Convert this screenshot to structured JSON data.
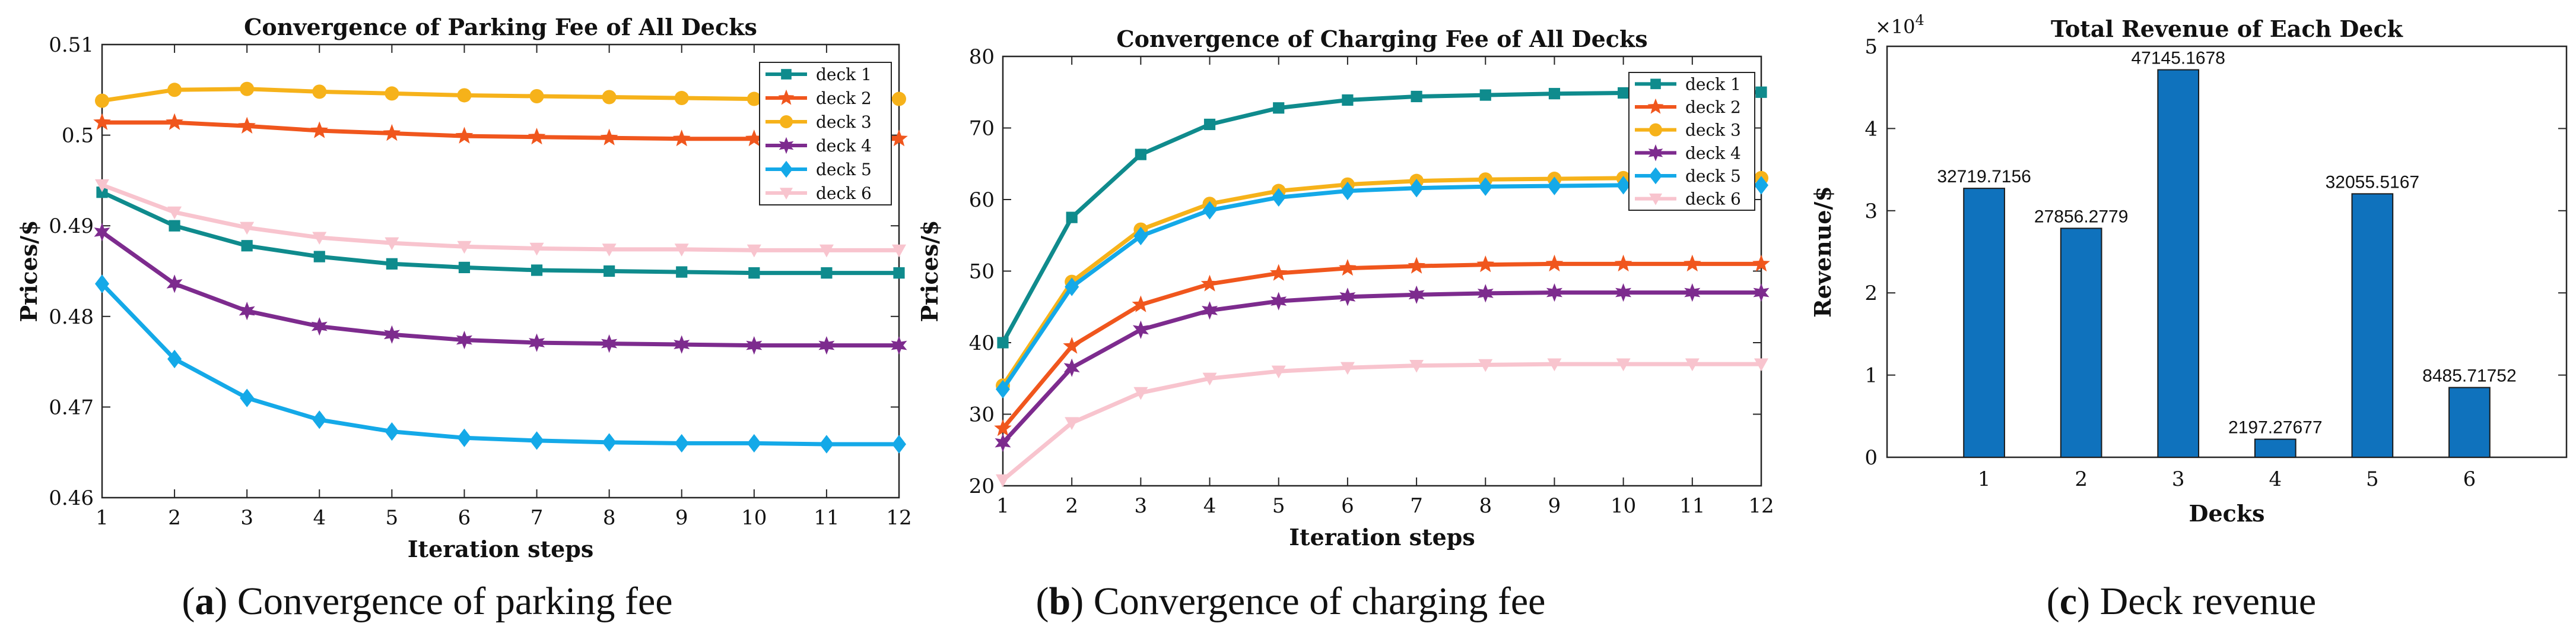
{
  "chart_data": [
    {
      "type": "line",
      "id": "a",
      "title": "Convergence of Parking Fee of All Decks",
      "xlabel": "Iteration steps",
      "ylabel": "Prices/$",
      "xlim": [
        1,
        12
      ],
      "ylim": [
        0.46,
        0.51
      ],
      "xticks": [
        1,
        2,
        3,
        4,
        5,
        6,
        7,
        8,
        9,
        10,
        11,
        12
      ],
      "yticks": [
        0.46,
        0.47,
        0.48,
        0.49,
        0.5,
        0.51
      ],
      "ytick_labels": [
        "0.46",
        "0.47",
        "0.48",
        "0.49",
        "0.5",
        "0.51"
      ],
      "legend_position": "top-right",
      "x": [
        1,
        2,
        3,
        4,
        5,
        6,
        7,
        8,
        9,
        10,
        11,
        12
      ],
      "series": [
        {
          "name": "deck 1",
          "color": "#0f8b8d",
          "marker": "square",
          "values": [
            0.4937,
            0.49,
            0.4878,
            0.4866,
            0.4858,
            0.4854,
            0.4851,
            0.485,
            0.4849,
            0.4848,
            0.4848,
            0.4848
          ]
        },
        {
          "name": "deck 2",
          "color": "#f0561d",
          "marker": "star",
          "values": [
            0.5014,
            0.5014,
            0.501,
            0.5005,
            0.5002,
            0.4999,
            0.4998,
            0.4997,
            0.4996,
            0.4996,
            0.4996,
            0.4996
          ]
        },
        {
          "name": "deck 3",
          "color": "#f6b21a",
          "marker": "circle",
          "values": [
            0.5038,
            0.505,
            0.5051,
            0.5048,
            0.5046,
            0.5044,
            0.5043,
            0.5042,
            0.5041,
            0.504,
            0.504,
            0.504
          ]
        },
        {
          "name": "deck 4",
          "color": "#7d2b8e",
          "marker": "asterisk",
          "values": [
            0.4893,
            0.4836,
            0.4806,
            0.4789,
            0.478,
            0.4774,
            0.4771,
            0.477,
            0.4769,
            0.4768,
            0.4768,
            0.4768
          ]
        },
        {
          "name": "deck 5",
          "color": "#14a9e8",
          "marker": "diamond",
          "values": [
            0.4836,
            0.4753,
            0.471,
            0.4686,
            0.4673,
            0.4666,
            0.4663,
            0.4661,
            0.466,
            0.466,
            0.4659,
            0.4659
          ]
        },
        {
          "name": "deck 6",
          "color": "#f8c4ce",
          "marker": "triangle-down",
          "values": [
            0.4945,
            0.4915,
            0.4898,
            0.4887,
            0.4881,
            0.4877,
            0.4875,
            0.4874,
            0.4874,
            0.4873,
            0.4873,
            0.4873
          ]
        }
      ]
    },
    {
      "type": "line",
      "id": "b",
      "title": "Convergence of Charging Fee of All Decks",
      "xlabel": "Iteration steps",
      "ylabel": "Prices/$",
      "xlim": [
        1,
        12
      ],
      "ylim": [
        20,
        80
      ],
      "xticks": [
        1,
        2,
        3,
        4,
        5,
        6,
        7,
        8,
        9,
        10,
        11,
        12
      ],
      "yticks": [
        20,
        30,
        40,
        50,
        60,
        70,
        80
      ],
      "ytick_labels": [
        "20",
        "30",
        "40",
        "50",
        "60",
        "70",
        "80"
      ],
      "legend_position": "top-right",
      "x": [
        1,
        2,
        3,
        4,
        5,
        6,
        7,
        8,
        9,
        10,
        11,
        12
      ],
      "series": [
        {
          "name": "deck 1",
          "color": "#0f8b8d",
          "marker": "square",
          "values": [
            40.0,
            57.5,
            66.3,
            70.5,
            72.8,
            73.9,
            74.4,
            74.6,
            74.8,
            74.9,
            75.0,
            75.0
          ]
        },
        {
          "name": "deck 2",
          "color": "#f0561d",
          "marker": "star",
          "values": [
            28.0,
            39.5,
            45.3,
            48.2,
            49.7,
            50.4,
            50.7,
            50.9,
            51.0,
            51.0,
            51.0,
            51.0
          ]
        },
        {
          "name": "deck 3",
          "color": "#f6b21a",
          "marker": "circle",
          "values": [
            34.0,
            48.5,
            55.8,
            59.4,
            61.2,
            62.1,
            62.6,
            62.8,
            62.9,
            63.0,
            63.0,
            63.0
          ]
        },
        {
          "name": "deck 4",
          "color": "#7d2b8e",
          "marker": "asterisk",
          "values": [
            26.0,
            36.5,
            41.8,
            44.5,
            45.8,
            46.4,
            46.7,
            46.9,
            47.0,
            47.0,
            47.0,
            47.0
          ]
        },
        {
          "name": "deck 5",
          "color": "#14a9e8",
          "marker": "diamond",
          "values": [
            33.5,
            47.8,
            54.9,
            58.5,
            60.3,
            61.2,
            61.6,
            61.8,
            61.9,
            62.0,
            62.0,
            62.0
          ]
        },
        {
          "name": "deck 6",
          "color": "#f8c4ce",
          "marker": "triangle-down",
          "values": [
            20.8,
            28.8,
            33.0,
            35.0,
            36.0,
            36.5,
            36.8,
            36.9,
            37.0,
            37.0,
            37.0,
            37.0
          ]
        }
      ]
    },
    {
      "type": "bar",
      "id": "c",
      "title": "Total Revenue of Each Deck",
      "xlabel": "Decks",
      "ylabel": "Revenue/$",
      "exponent_label": "×10",
      "exponent_power": "4",
      "categories": [
        "1",
        "2",
        "3",
        "4",
        "5",
        "6"
      ],
      "values": [
        32719.7156,
        27856.2779,
        47145.1678,
        2197.27677,
        32055.5167,
        8485.71752
      ],
      "data_labels": [
        "32719.7156",
        "27856.2779",
        "47145.1678",
        "2197.27677",
        "32055.5167",
        "8485.71752"
      ],
      "ylim": [
        0,
        50000
      ],
      "yticks": [
        0,
        10000,
        20000,
        30000,
        40000,
        50000
      ],
      "ytick_labels": [
        "0",
        "1",
        "2",
        "3",
        "4",
        "5"
      ],
      "bar_color": "#0f72bd"
    }
  ],
  "captions": [
    {
      "letter": "a",
      "text": " Convergence of parking fee"
    },
    {
      "letter": "b",
      "text": " Convergence of charging fee"
    },
    {
      "letter": "c",
      "text": " Deck revenue"
    }
  ]
}
